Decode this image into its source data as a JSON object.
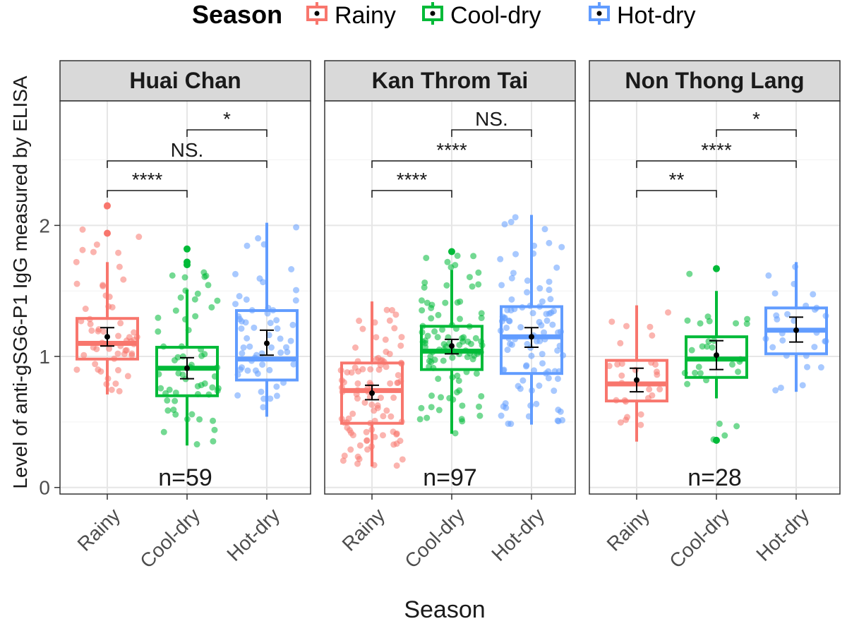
{
  "legend": {
    "title": "Season",
    "items": [
      {
        "label": "Rainy",
        "color": "#F8766D"
      },
      {
        "label": "Cool-dry",
        "color": "#00BA38"
      },
      {
        "label": "Hot-dry",
        "color": "#619CFF"
      }
    ]
  },
  "chart_data": {
    "type": "boxplot",
    "title": "",
    "xlabel": "Season",
    "ylabel": "Level of anti-gSG6-P1 IgG measured by ELISA",
    "ylim": [
      -0.05,
      2.95
    ],
    "yticks": [
      0,
      1,
      2
    ],
    "categories": [
      "Rainy",
      "Cool-dry",
      "Hot-dry"
    ],
    "colors": {
      "Rainy": "#F8766D",
      "Cool-dry": "#00BA38",
      "Hot-dry": "#619CFF"
    },
    "panels": [
      {
        "title": "Huai Chan",
        "n_label": "n=59",
        "groups": [
          {
            "season": "Rainy",
            "whisker_low": 0.71,
            "q1": 0.98,
            "median": 1.1,
            "q3": 1.29,
            "whisker_high": 1.72,
            "mean": 1.15,
            "ci_low": 1.08,
            "ci_high": 1.22,
            "outliers": [
              1.94,
              2.15
            ],
            "jitter_range": [
              0.71,
              2.15
            ],
            "jitter_n": 59
          },
          {
            "season": "Cool-dry",
            "whisker_low": 0.32,
            "q1": 0.7,
            "median": 0.91,
            "q3": 1.07,
            "whisker_high": 1.51,
            "mean": 0.91,
            "ci_low": 0.83,
            "ci_high": 0.99,
            "outliers": [
              1.7,
              1.72,
              1.82
            ],
            "jitter_range": [
              0.32,
              1.82
            ],
            "jitter_n": 59
          },
          {
            "season": "Hot-dry",
            "whisker_low": 0.54,
            "q1": 0.82,
            "median": 0.98,
            "q3": 1.35,
            "whisker_high": 2.02,
            "mean": 1.1,
            "ci_low": 1.01,
            "ci_high": 1.2,
            "outliers": [],
            "jitter_range": [
              0.54,
              2.02
            ],
            "jitter_n": 59
          }
        ],
        "comparisons": [
          {
            "from": "Rainy",
            "to": "Cool-dry",
            "label": "****",
            "y": 1.12
          },
          {
            "from": "Rainy",
            "to": "Hot-dry",
            "label": "NS.",
            "y": 1.37
          },
          {
            "from": "Cool-dry",
            "to": "Hot-dry",
            "label": "*",
            "y": 1.62
          }
        ]
      },
      {
        "title": "Kan Throm Tai",
        "n_label": "n=97",
        "groups": [
          {
            "season": "Rainy",
            "whisker_low": 0.16,
            "q1": 0.49,
            "median": 0.74,
            "q3": 0.95,
            "whisker_high": 1.42,
            "mean": 0.72,
            "ci_low": 0.67,
            "ci_high": 0.78,
            "outliers": [],
            "jitter_range": [
              0.16,
              1.42
            ],
            "jitter_n": 97
          },
          {
            "season": "Cool-dry",
            "whisker_low": 0.41,
            "q1": 0.9,
            "median": 1.04,
            "q3": 1.23,
            "whisker_high": 1.66,
            "mean": 1.08,
            "ci_low": 1.02,
            "ci_high": 1.13,
            "outliers": [
              1.8
            ],
            "jitter_range": [
              0.41,
              1.8
            ],
            "jitter_n": 97
          },
          {
            "season": "Hot-dry",
            "whisker_low": 0.48,
            "q1": 0.87,
            "median": 1.15,
            "q3": 1.38,
            "whisker_high": 2.08,
            "mean": 1.15,
            "ci_low": 1.07,
            "ci_high": 1.22,
            "outliers": [],
            "jitter_range": [
              0.48,
              2.08
            ],
            "jitter_n": 97
          }
        ],
        "comparisons": [
          {
            "from": "Rainy",
            "to": "Cool-dry",
            "label": "****",
            "y": 1.12
          },
          {
            "from": "Rainy",
            "to": "Hot-dry",
            "label": "****",
            "y": 1.37
          },
          {
            "from": "Cool-dry",
            "to": "Hot-dry",
            "label": "NS.",
            "y": 1.62
          }
        ]
      },
      {
        "title": "Non Thong Lang",
        "n_label": "n=28",
        "groups": [
          {
            "season": "Rainy",
            "whisker_low": 0.35,
            "q1": 0.66,
            "median": 0.79,
            "q3": 0.97,
            "whisker_high": 1.39,
            "mean": 0.82,
            "ci_low": 0.73,
            "ci_high": 0.91,
            "outliers": [],
            "jitter_range": [
              0.35,
              1.39
            ],
            "jitter_n": 28
          },
          {
            "season": "Cool-dry",
            "whisker_low": 0.68,
            "q1": 0.84,
            "median": 0.98,
            "q3": 1.15,
            "whisker_high": 1.5,
            "mean": 1.01,
            "ci_low": 0.9,
            "ci_high": 1.12,
            "outliers": [
              0.36,
              1.67
            ],
            "jitter_range": [
              0.36,
              1.67
            ],
            "jitter_n": 28
          },
          {
            "season": "Hot-dry",
            "whisker_low": 0.73,
            "q1": 1.02,
            "median": 1.2,
            "q3": 1.37,
            "whisker_high": 1.72,
            "mean": 1.2,
            "ci_low": 1.11,
            "ci_high": 1.3,
            "outliers": [],
            "jitter_range": [
              0.73,
              1.72
            ],
            "jitter_n": 28
          }
        ],
        "comparisons": [
          {
            "from": "Rainy",
            "to": "Cool-dry",
            "label": "**",
            "y": 1.12
          },
          {
            "from": "Rainy",
            "to": "Hot-dry",
            "label": "****",
            "y": 1.37
          },
          {
            "from": "Cool-dry",
            "to": "Hot-dry",
            "label": "*",
            "y": 1.62
          }
        ]
      }
    ]
  }
}
